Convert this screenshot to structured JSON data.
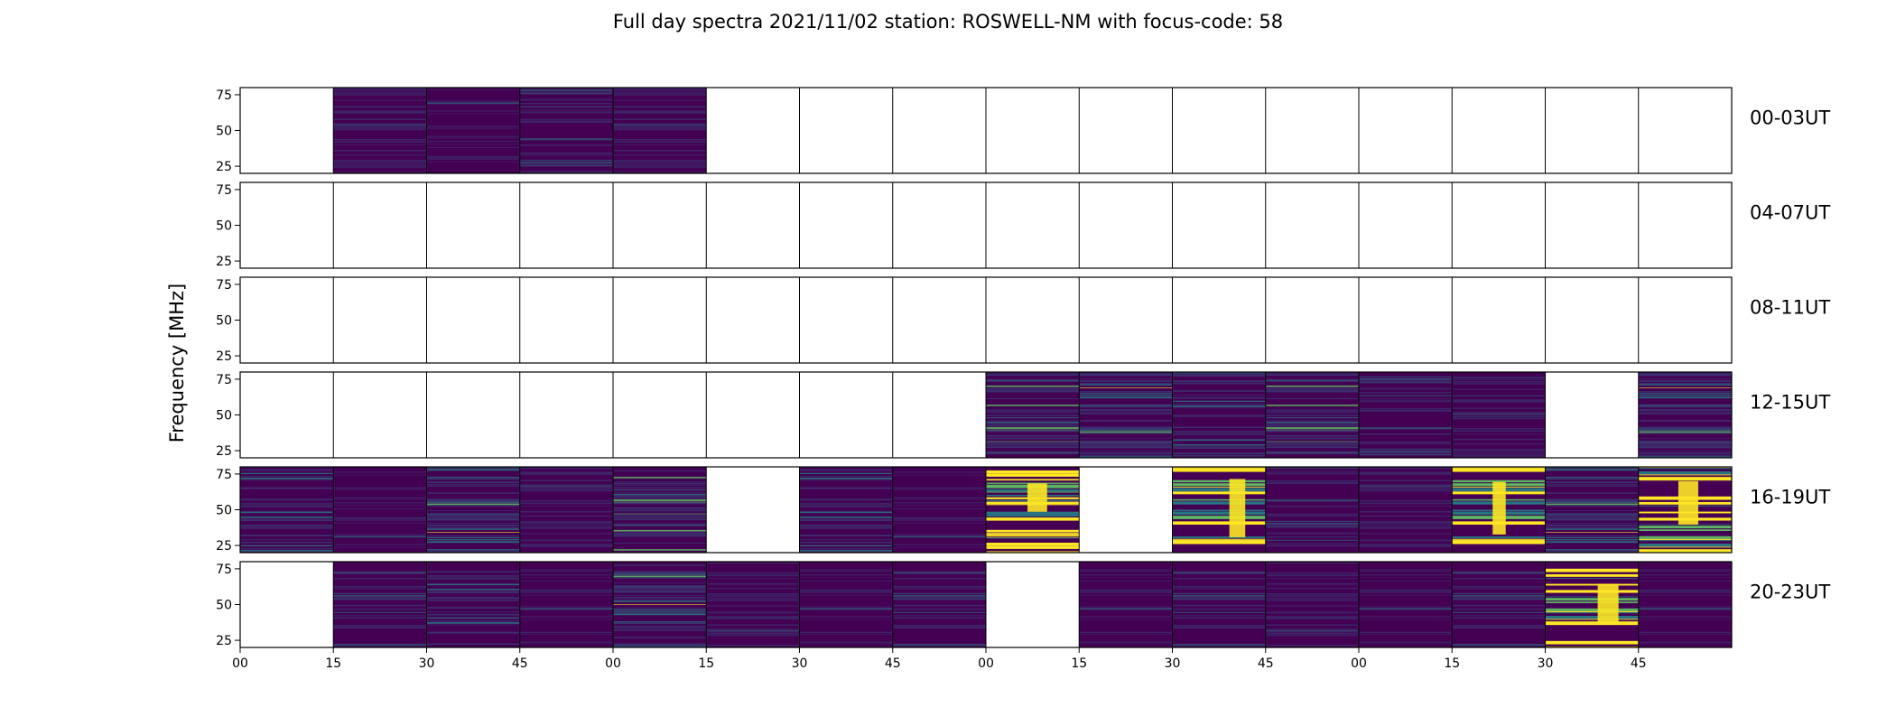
{
  "chart_data": {
    "type": "heatmap",
    "title": "Full day spectra 2021/11/02 station: ROSWELL-NM with focus-code: 58",
    "ylabel": "Frequency [MHz]",
    "xlabel": "",
    "ylim": [
      20,
      80
    ],
    "y_ticks": [
      "25",
      "50",
      "75"
    ],
    "x_ticks": [
      "00",
      "15",
      "30",
      "45",
      "00",
      "15",
      "30",
      "45",
      "00",
      "15",
      "30",
      "45",
      "00",
      "15",
      "30",
      "45"
    ],
    "colormap": "viridis",
    "colors": {
      "dark": "#440154",
      "blue": "#31688e",
      "teal": "#21918c",
      "green": "#5ec962",
      "yellow": "#fde725"
    },
    "segment_minutes": 15,
    "legend": "none",
    "grid": false,
    "rows": [
      {
        "label": "00-03UT",
        "data_present": [
          0,
          1,
          1,
          1,
          1,
          0,
          0,
          0,
          0,
          0,
          0,
          0,
          0,
          0,
          0,
          0
        ],
        "intensity": [
          0,
          0,
          0,
          0,
          0,
          0,
          0,
          0,
          0,
          0,
          0,
          0,
          0,
          0,
          0,
          0
        ]
      },
      {
        "label": "04-07UT",
        "data_present": [
          0,
          0,
          0,
          0,
          0,
          0,
          0,
          0,
          0,
          0,
          0,
          0,
          0,
          0,
          0,
          0
        ],
        "intensity": [
          0,
          0,
          0,
          0,
          0,
          0,
          0,
          0,
          0,
          0,
          0,
          0,
          0,
          0,
          0,
          0
        ]
      },
      {
        "label": "08-11UT",
        "data_present": [
          0,
          0,
          0,
          0,
          0,
          0,
          0,
          0,
          0,
          0,
          0,
          0,
          0,
          0,
          0,
          0
        ],
        "intensity": [
          0,
          0,
          0,
          0,
          0,
          0,
          0,
          0,
          0,
          0,
          0,
          0,
          0,
          0,
          0,
          0
        ]
      },
      {
        "label": "12-15UT",
        "data_present": [
          0,
          0,
          0,
          0,
          0,
          0,
          0,
          0,
          1,
          1,
          1,
          1,
          1,
          1,
          0,
          1
        ],
        "intensity": [
          0,
          0,
          0,
          0,
          0,
          0,
          0,
          0,
          2,
          2,
          2,
          2,
          1,
          1,
          0,
          2
        ]
      },
      {
        "label": "16-19UT",
        "data_present": [
          1,
          1,
          1,
          1,
          1,
          0,
          1,
          1,
          1,
          0,
          1,
          1,
          1,
          1,
          1,
          1
        ],
        "intensity": [
          2,
          1,
          2,
          1,
          2,
          0,
          2,
          1,
          3,
          0,
          3,
          1,
          1,
          3,
          2,
          3
        ]
      },
      {
        "label": "20-23UT",
        "data_present": [
          0,
          1,
          1,
          1,
          1,
          1,
          1,
          1,
          0,
          1,
          1,
          1,
          1,
          1,
          1,
          1
        ],
        "intensity": [
          0,
          1,
          2,
          1,
          2,
          1,
          1,
          1,
          0,
          1,
          1,
          1,
          1,
          1,
          3,
          1
        ]
      }
    ]
  }
}
